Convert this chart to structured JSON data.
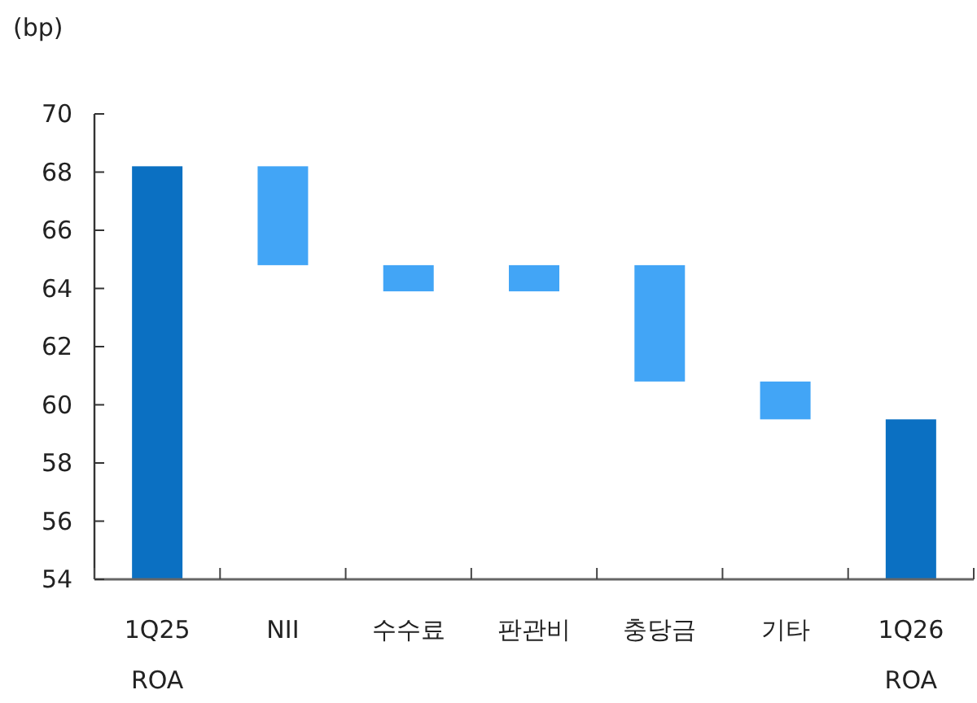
{
  "chart_data": {
    "type": "bar",
    "ylabel": "(bp)",
    "categories": [
      "1Q25 ROA",
      "NII",
      "수수료",
      "판관비",
      "충당금",
      "기타",
      "1Q26 ROA"
    ],
    "values": [
      68.2,
      -3.4,
      -0.9,
      0.9,
      -4.0,
      -1.3,
      59.5
    ],
    "base": [
      null,
      68.2,
      64.8,
      63.9,
      64.8,
      60.8,
      null
    ],
    "colors": [
      "#0b70c2",
      "#42a5f6",
      "#42a5f6",
      "#42a5f6",
      "#42a5f6",
      "#42a5f6",
      "#0b70c2"
    ],
    "ylim": [
      54,
      70
    ],
    "yticks": [
      54,
      56,
      58,
      60,
      62,
      64,
      66,
      68,
      70
    ],
    "grid": false
  }
}
